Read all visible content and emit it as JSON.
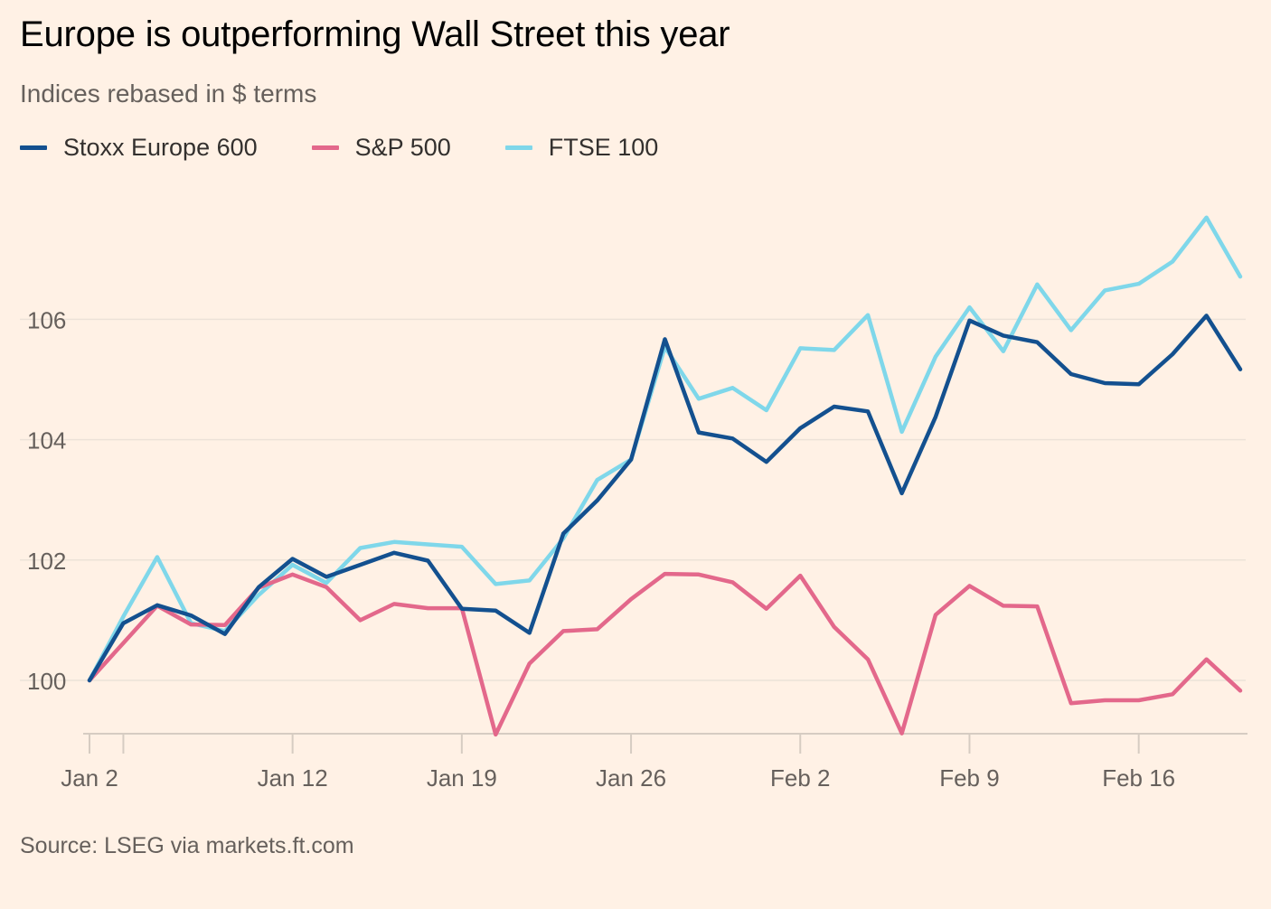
{
  "title": "Europe is outperforming Wall Street this year",
  "subtitle": "Indices rebased in $ terms",
  "source": "Source: LSEG via markets.ft.com",
  "colors": {
    "stoxx": "#13508f",
    "sp500": "#e3688b",
    "ftse": "#7fd7ea",
    "grid": "#ece2d8",
    "axis": "#d6ccc2"
  },
  "legend": [
    {
      "name": "Stoxx Europe 600",
      "color": "#13508f"
    },
    {
      "name": "S&P 500",
      "color": "#e3688b"
    },
    {
      "name": "FTSE 100",
      "color": "#7fd7ea"
    }
  ],
  "chart_data": {
    "type": "line",
    "title": "Europe is outperforming Wall Street this year",
    "subtitle": "Indices rebased in $ terms",
    "xlabel": "",
    "ylabel": "",
    "ylim": [
      99.1,
      108.1
    ],
    "yticks": [
      100,
      102,
      104,
      106
    ],
    "grid": true,
    "x_index_range": [
      0,
      34
    ],
    "xticks": [
      {
        "index": 0,
        "label": "Jan 2"
      },
      {
        "index": 6,
        "label": "Jan 12"
      },
      {
        "index": 11,
        "label": "Jan 19"
      },
      {
        "index": 16,
        "label": "Jan 26"
      },
      {
        "index": 21,
        "label": "Feb 2"
      },
      {
        "index": 26,
        "label": "Feb 9"
      },
      {
        "index": 31,
        "label": "Feb 16"
      }
    ],
    "series": [
      {
        "name": "Stoxx Europe 600",
        "color": "#13508f",
        "values": [
          100,
          100.95,
          101.25,
          101.08,
          100.77,
          101.55,
          102.02,
          101.72,
          101.92,
          102.12,
          101.99,
          101.19,
          101.16,
          100.79,
          102.44,
          102.99,
          103.67,
          105.67,
          104.12,
          104.02,
          103.63,
          104.19,
          104.55,
          104.47,
          103.11,
          104.38,
          105.98,
          105.73,
          105.62,
          105.09,
          104.94,
          104.92,
          105.42,
          106.06,
          105.17
        ]
      },
      {
        "name": "S&P 500",
        "color": "#e3688b",
        "values": [
          100,
          100.62,
          101.24,
          100.93,
          100.92,
          101.54,
          101.76,
          101.55,
          101.0,
          101.27,
          101.2,
          101.2,
          99.1,
          100.28,
          100.82,
          100.85,
          101.35,
          101.77,
          101.76,
          101.63,
          101.19,
          101.74,
          100.89,
          100.35,
          99.12,
          101.09,
          101.57,
          101.24,
          101.23,
          99.62,
          99.67,
          99.67,
          99.77,
          100.35,
          99.83
        ]
      },
      {
        "name": "FTSE 100",
        "color": "#7fd7ea",
        "values": [
          100,
          101.06,
          102.05,
          100.95,
          100.82,
          101.42,
          101.92,
          101.62,
          102.2,
          102.3,
          102.26,
          102.22,
          101.6,
          101.66,
          102.36,
          103.33,
          103.67,
          105.54,
          104.68,
          104.86,
          104.49,
          105.52,
          105.49,
          106.07,
          104.13,
          105.38,
          106.2,
          105.47,
          106.58,
          105.82,
          106.48,
          106.59,
          106.96,
          107.69,
          106.71
        ]
      }
    ]
  }
}
